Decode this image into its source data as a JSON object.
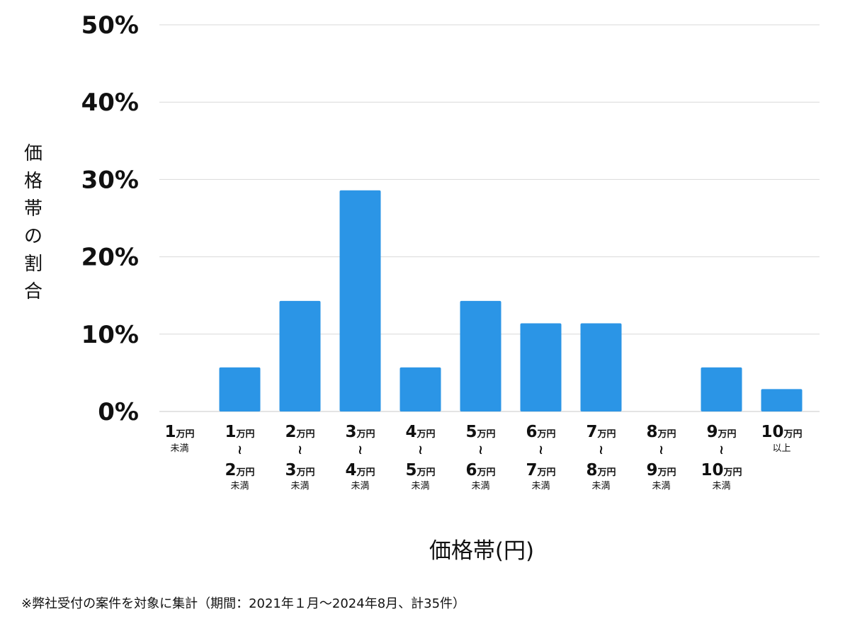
{
  "chart_data": {
    "type": "bar",
    "categories": [
      {
        "top": "1",
        "top_unit": "万円",
        "tilde": "",
        "bottom": "",
        "bottom_unit": "",
        "sub": "未満"
      },
      {
        "top": "1",
        "top_unit": "万円",
        "tilde": "≀",
        "bottom": "2",
        "bottom_unit": "万円",
        "sub": "未満"
      },
      {
        "top": "2",
        "top_unit": "万円",
        "tilde": "≀",
        "bottom": "3",
        "bottom_unit": "万円",
        "sub": "未満"
      },
      {
        "top": "3",
        "top_unit": "万円",
        "tilde": "≀",
        "bottom": "4",
        "bottom_unit": "万円",
        "sub": "未満"
      },
      {
        "top": "4",
        "top_unit": "万円",
        "tilde": "≀",
        "bottom": "5",
        "bottom_unit": "万円",
        "sub": "未満"
      },
      {
        "top": "5",
        "top_unit": "万円",
        "tilde": "≀",
        "bottom": "6",
        "bottom_unit": "万円",
        "sub": "未満"
      },
      {
        "top": "6",
        "top_unit": "万円",
        "tilde": "≀",
        "bottom": "7",
        "bottom_unit": "万円",
        "sub": "未満"
      },
      {
        "top": "7",
        "top_unit": "万円",
        "tilde": "≀",
        "bottom": "8",
        "bottom_unit": "万円",
        "sub": "未満"
      },
      {
        "top": "8",
        "top_unit": "万円",
        "tilde": "≀",
        "bottom": "9",
        "bottom_unit": "万円",
        "sub": "未満"
      },
      {
        "top": "9",
        "top_unit": "万円",
        "tilde": "≀",
        "bottom": "10",
        "bottom_unit": "万円",
        "sub": "未満"
      },
      {
        "top": "10",
        "top_unit": "万円",
        "tilde": "",
        "bottom": "",
        "bottom_unit": "",
        "sub": "以上"
      }
    ],
    "values": [
      0,
      5.7,
      14.3,
      28.6,
      5.7,
      14.3,
      11.4,
      11.4,
      0,
      5.7,
      2.9
    ],
    "ylim": [
      0,
      50
    ],
    "yticks": [
      "0%",
      "10%",
      "20%",
      "30%",
      "40%",
      "50%"
    ],
    "ylabel": "価格帯の割合",
    "xlabel": "価格帯(円)",
    "grid": true,
    "bar_color": "#2b95e6",
    "grid_color": "#d9d9d9"
  },
  "footnote": "※弊社受付の案件を対象に集計（期間：2021年１月～2024年8月、計35件）"
}
